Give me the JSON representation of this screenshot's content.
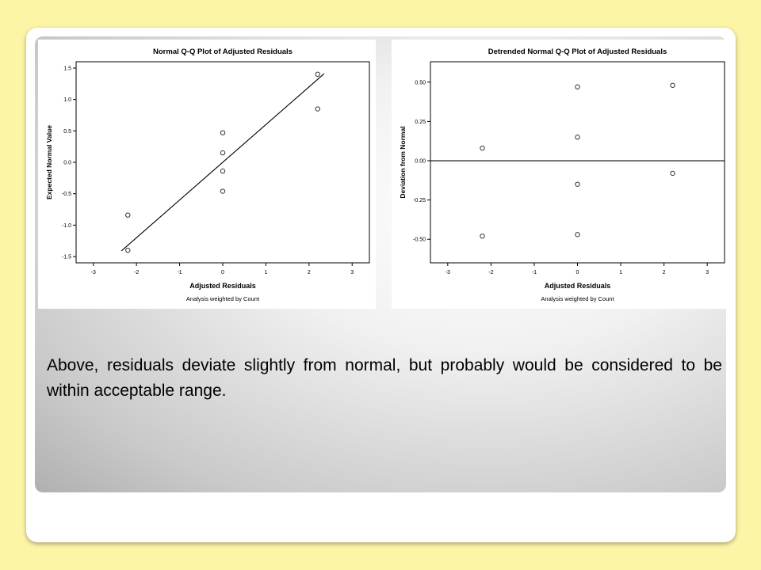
{
  "caption": "Above, residuals deviate slightly from normal, but probably would be considered to be within acceptable range.",
  "chart_data": [
    {
      "type": "scatter",
      "title": "Normal Q-Q Plot of Adjusted Residuals",
      "xlabel": "Adjusted Residuals",
      "ylabel": "Expected Normal Value",
      "footnote": "Analysis weighted by Count",
      "xlim": [
        -3.4,
        3.4
      ],
      "ylim": [
        -1.6,
        1.6
      ],
      "xticks": [
        -3,
        -2,
        -1,
        0,
        1,
        2,
        3
      ],
      "xtick_labels": [
        "-3",
        "-2",
        "-1",
        "0",
        "1",
        "2",
        "3"
      ],
      "yticks": [
        -1.5,
        -1.0,
        -0.5,
        0.0,
        0.5,
        1.0,
        1.5
      ],
      "ytick_labels": [
        "-1.5",
        "-1.0",
        "-0.5",
        "0.0",
        "0.5",
        "1.0",
        "1.5"
      ],
      "grid": false,
      "points": [
        {
          "x": -2.2,
          "y": -0.84
        },
        {
          "x": -2.2,
          "y": -1.4
        },
        {
          "x": 0.0,
          "y": 0.47
        },
        {
          "x": 0.0,
          "y": 0.15
        },
        {
          "x": 0.0,
          "y": -0.14
        },
        {
          "x": 0.0,
          "y": -0.46
        },
        {
          "x": 2.2,
          "y": 1.4
        },
        {
          "x": 2.2,
          "y": 0.85
        }
      ],
      "reference_line": {
        "x": [
          -2.35,
          2.35
        ],
        "y": [
          -1.41,
          1.41
        ]
      }
    },
    {
      "type": "scatter",
      "title": "Detrended Normal Q-Q Plot of Adjusted Residuals",
      "xlabel": "Adjusted Residuals",
      "ylabel": "Deviation from Normal",
      "footnote": "Analysis weighted by Count",
      "xlim": [
        -3.4,
        3.4
      ],
      "ylim": [
        -0.65,
        0.63
      ],
      "xticks": [
        -3,
        -2,
        -1,
        0,
        1,
        2,
        3
      ],
      "xtick_labels": [
        "-3",
        "-2",
        "-1",
        "0",
        "1",
        "2",
        "3"
      ],
      "yticks": [
        -0.5,
        -0.25,
        0.0,
        0.25,
        0.5
      ],
      "ytick_labels": [
        "-0.50",
        "-0.25",
        "0.00",
        "0.25",
        "0.50"
      ],
      "grid": false,
      "points": [
        {
          "x": -2.2,
          "y": 0.08
        },
        {
          "x": -2.2,
          "y": -0.48
        },
        {
          "x": 0.0,
          "y": 0.47
        },
        {
          "x": 0.0,
          "y": 0.15
        },
        {
          "x": 0.0,
          "y": -0.15
        },
        {
          "x": 0.0,
          "y": -0.47
        },
        {
          "x": 2.2,
          "y": 0.48
        },
        {
          "x": 2.2,
          "y": -0.08
        }
      ],
      "reference_line": {
        "x": [
          -3.4,
          3.4
        ],
        "y": [
          0.0,
          0.0
        ]
      }
    }
  ]
}
